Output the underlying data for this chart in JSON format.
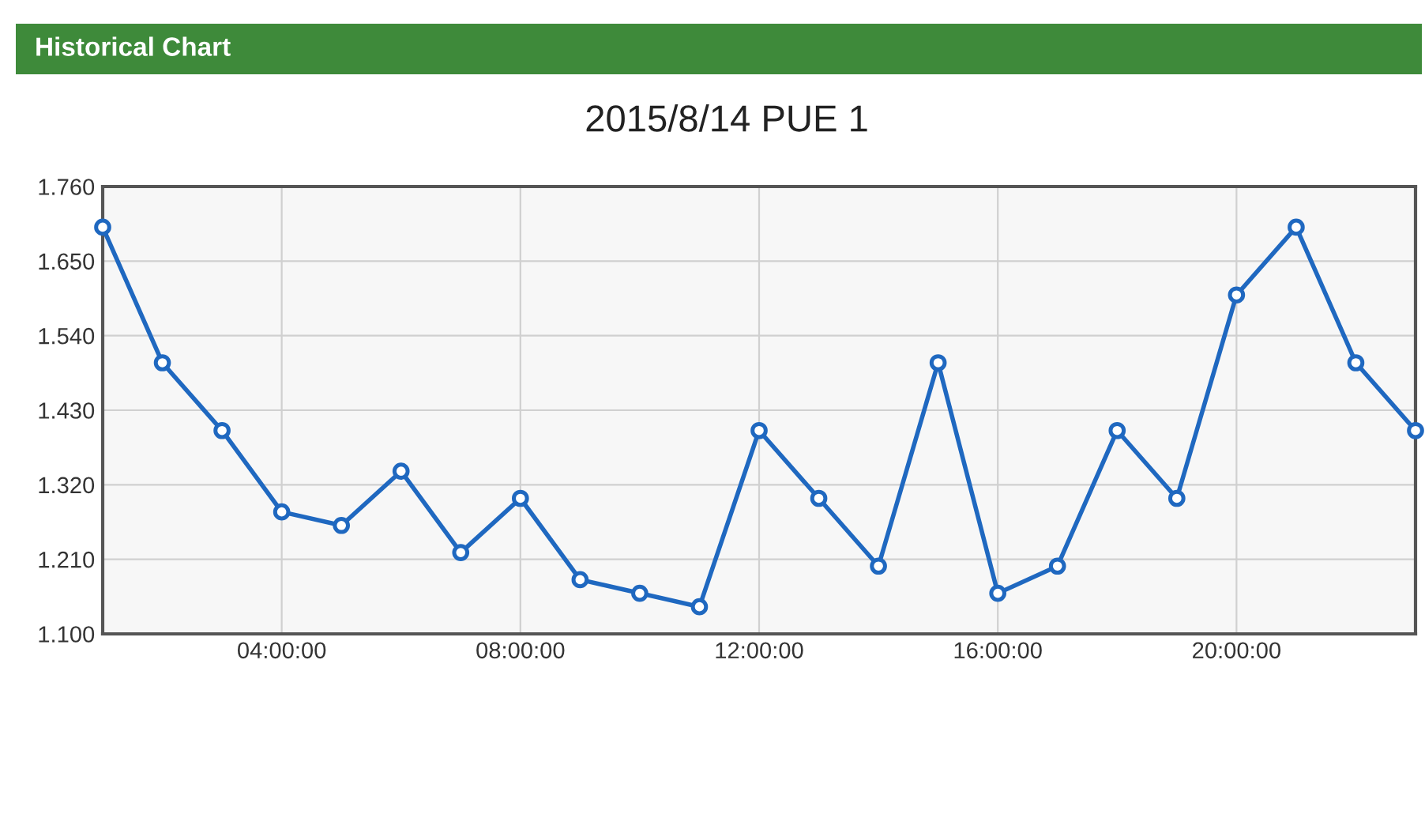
{
  "chart_data": {
    "type": "line",
    "title": "2015/8/14 PUE 1",
    "annotations": [
      "Historical Chart"
    ],
    "x": [
      1,
      2,
      3,
      4,
      5,
      6,
      7,
      8,
      9,
      10,
      11,
      12,
      13,
      14,
      15,
      16,
      17,
      18,
      19,
      20,
      21,
      22,
      23
    ],
    "series": [
      {
        "color": "#1f68c0",
        "values": [
          1.7,
          1.5,
          1.4,
          1.28,
          1.26,
          1.34,
          1.22,
          1.3,
          1.18,
          1.16,
          1.14,
          1.4,
          1.3,
          1.2,
          1.5,
          1.16,
          1.2,
          1.4,
          1.3,
          1.6,
          1.7,
          1.5,
          1.4
        ]
      }
    ],
    "xlim": [
      1,
      23
    ],
    "xticks": [
      {
        "value": 4,
        "label": "04:00:00"
      },
      {
        "value": 8,
        "label": "08:00:00"
      },
      {
        "value": 12,
        "label": "12:00:00"
      },
      {
        "value": 16,
        "label": "16:00:00"
      },
      {
        "value": 20,
        "label": "20:00:00"
      }
    ],
    "ylim": [
      1.1,
      1.76
    ],
    "yticks": [
      {
        "value": 1.1,
        "label": "1.100"
      },
      {
        "value": 1.21,
        "label": "1.210"
      },
      {
        "value": 1.32,
        "label": "1.320"
      },
      {
        "value": 1.43,
        "label": "1.430"
      },
      {
        "value": 1.54,
        "label": "1.540"
      },
      {
        "value": 1.65,
        "label": "1.650"
      },
      {
        "value": 1.76,
        "label": "1.760"
      }
    ],
    "grid": true,
    "marker": "circle",
    "line_style": "solid"
  }
}
